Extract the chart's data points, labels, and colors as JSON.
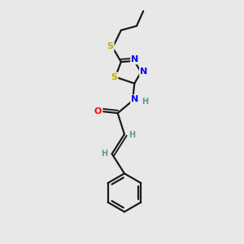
{
  "bg_color": "#e8e8e8",
  "bond_color": "#1a1a1a",
  "S_color": "#c8a800",
  "N_color": "#0000ff",
  "O_color": "#ff0000",
  "H_color": "#5a9a9a",
  "line_width": 1.6,
  "figsize": [
    3.0,
    3.0
  ],
  "dpi": 100,
  "xlim": [
    0,
    10
  ],
  "ylim": [
    0,
    10
  ]
}
